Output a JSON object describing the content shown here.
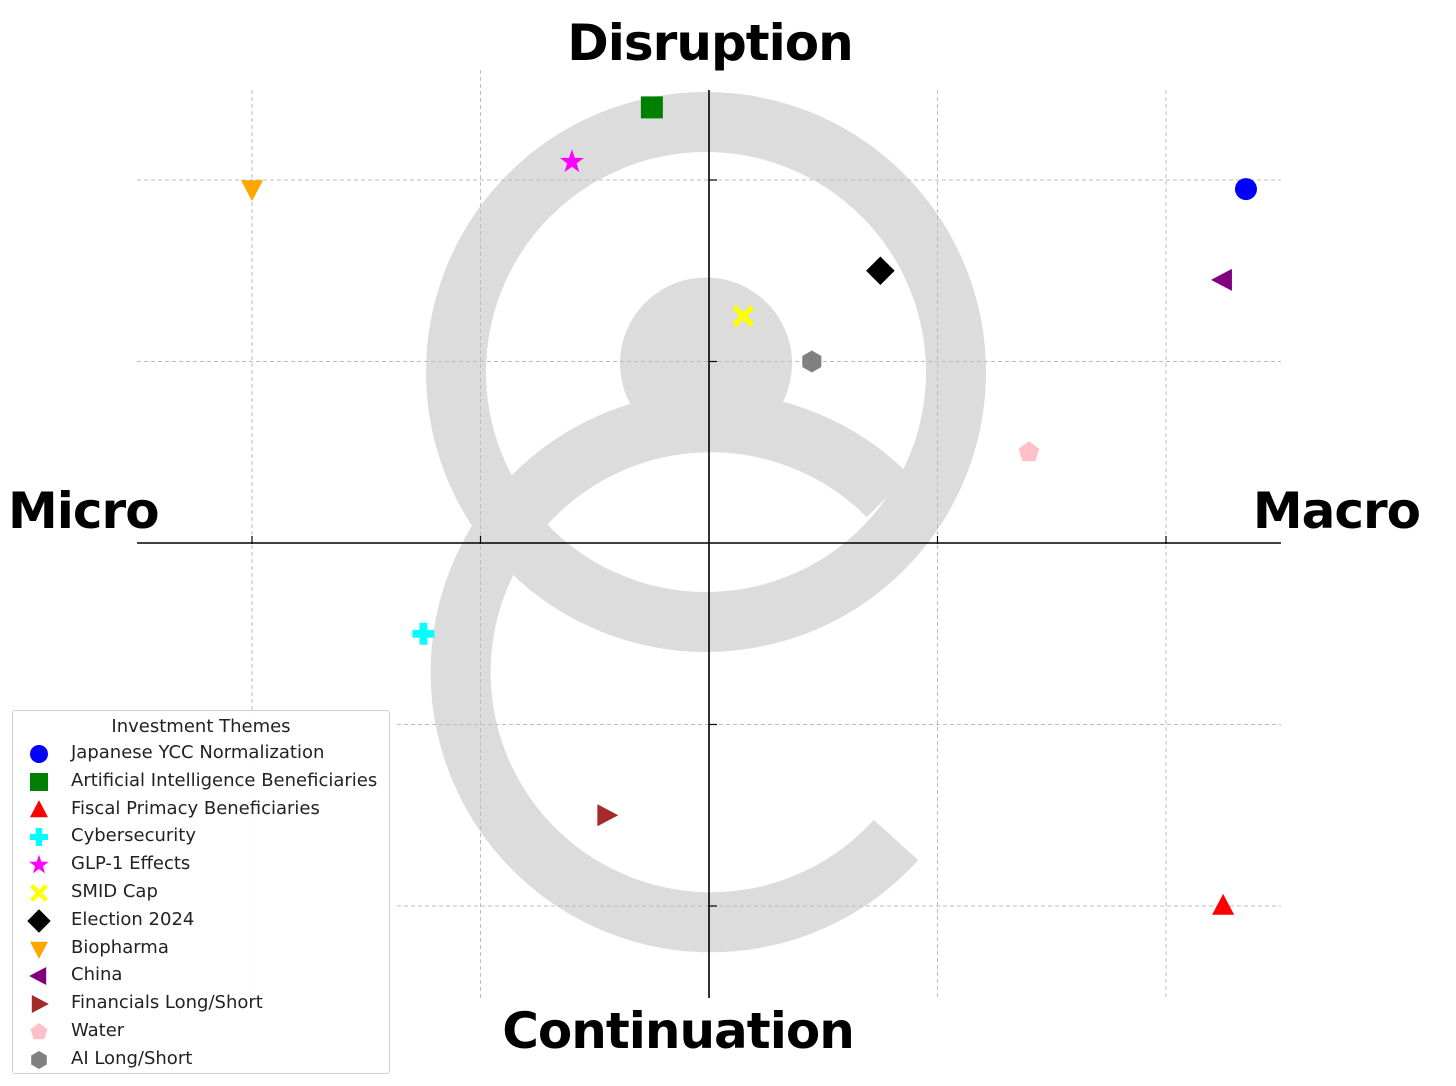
{
  "axes": {
    "top": "Disruption",
    "bottom": "Continuation",
    "left": "Micro",
    "right": "Macro"
  },
  "legend": {
    "title": "Investment Themes"
  },
  "chart_data": {
    "type": "scatter",
    "xlim": [
      -2.5,
      2.5
    ],
    "ylim": [
      -2.5,
      2.5
    ],
    "grid": true,
    "x_ticks": [
      -2,
      -1,
      0,
      1,
      2
    ],
    "y_ticks": [
      -2,
      -1,
      0,
      1,
      2
    ],
    "legend_position": "lower-left",
    "watermark": "gray circular logo",
    "series": [
      {
        "name": "Japanese YCC Normalization",
        "marker": "circle",
        "color": "#0000ff",
        "x": 2.35,
        "y": 1.95
      },
      {
        "name": "Artificial Intelligence Beneficiaries",
        "marker": "square",
        "color": "#008000",
        "x": -0.25,
        "y": 2.4
      },
      {
        "name": "Fiscal Primacy Beneficiaries",
        "marker": "triangle-up",
        "color": "#ff0000",
        "x": 2.25,
        "y": -2.0
      },
      {
        "name": "Cybersecurity",
        "marker": "plus",
        "color": "#00ffff",
        "x": -1.25,
        "y": -0.5
      },
      {
        "name": "GLP-1 Effects",
        "marker": "star",
        "color": "#ff00ff",
        "x": -0.6,
        "y": 2.1
      },
      {
        "name": "SMID Cap",
        "marker": "x",
        "color": "#ffff00",
        "x": 0.15,
        "y": 1.25
      },
      {
        "name": "Election 2024",
        "marker": "diamond",
        "color": "#000000",
        "x": 0.75,
        "y": 1.5
      },
      {
        "name": "Biopharma",
        "marker": "triangle-down",
        "color": "#ffa500",
        "x": -2.0,
        "y": 1.95
      },
      {
        "name": "China",
        "marker": "triangle-left",
        "color": "#800080",
        "x": 2.25,
        "y": 1.45
      },
      {
        "name": "Financials Long/Short",
        "marker": "triangle-right",
        "color": "#a52a2a",
        "x": -0.45,
        "y": -1.5
      },
      {
        "name": "Water",
        "marker": "pentagon",
        "color": "#ffc0cb",
        "x": 1.4,
        "y": 0.5
      },
      {
        "name": "AI Long/Short",
        "marker": "hexagon",
        "color": "#808080",
        "x": 0.45,
        "y": 1.0
      }
    ]
  }
}
